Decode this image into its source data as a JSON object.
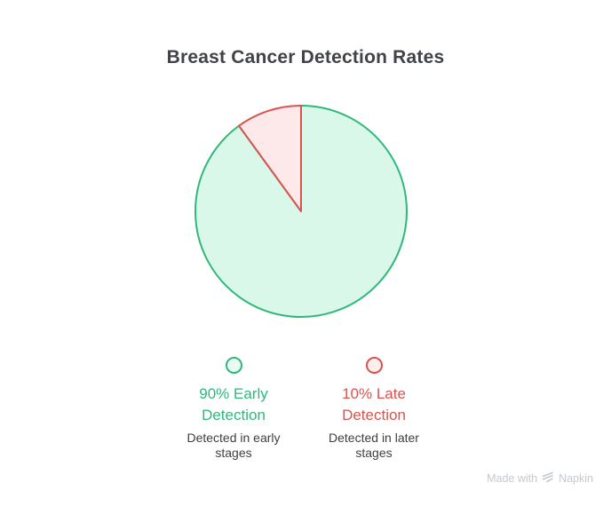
{
  "title": "Breast Cancer Detection Rates",
  "chart_data": {
    "type": "pie",
    "title": "Breast Cancer Detection Rates",
    "start_angle_deg": 0,
    "direction": "clockwise",
    "legend_position": "bottom",
    "slices": [
      {
        "label": "90% Early Detection",
        "value": 90,
        "description": "Detected in early stages",
        "fill": "#d9f8e9",
        "stroke": "#2fb879",
        "text_color": "#2eb87c",
        "swatch_fill": "#e9fbf2"
      },
      {
        "label": "10% Late Detection",
        "value": 10,
        "description": "Detected in later stages",
        "fill": "#fde9e9",
        "stroke": "#d9534f",
        "text_color": "#d9534f",
        "swatch_fill": "#fdeeed"
      }
    ]
  },
  "watermark": {
    "prefix": "Made with",
    "brand": "Napkin",
    "color": "#c5c9cd"
  }
}
